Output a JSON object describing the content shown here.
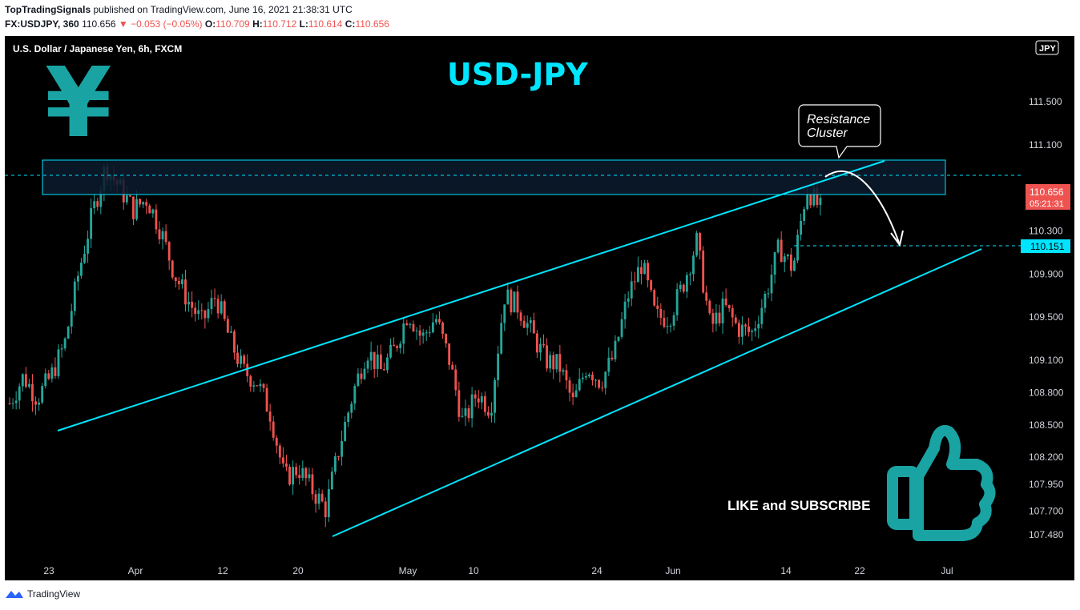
{
  "header": {
    "publisher": "TopTradingSignals",
    "published_text": "published on TradingView.com, June 16, 2021 21:38:31 UTC",
    "symbol": "FX:USDJPY, 360",
    "price": "110.656",
    "change_arrow": "▼",
    "change": "−0.053 (−0.05%)",
    "o_label": "O:",
    "o_value": "110.709",
    "h_label": "H:",
    "h_value": "110.712",
    "l_label": "L:",
    "l_value": "110.614",
    "c_label": "C:",
    "c_value": "110.656"
  },
  "chart": {
    "instrument": "U.S. Dollar / Japanese Yen, 6h, FXCM",
    "big_title": "USD-JPY",
    "currency_badge": "JPY",
    "currency_symbol": "¥",
    "resistance_label_line1": "Resistance",
    "resistance_label_line2": "Cluster",
    "cta": "LIKE and SUBSCRIBE",
    "thumb_icon": "thumbs-up-icon",
    "price_tag": "110.656",
    "countdown": "05:21:31",
    "level_tag": "110.151",
    "colors": {
      "up": "#26a69a",
      "down": "#ef5350",
      "accent": "#00e5ff",
      "teal": "#1aa3a3",
      "bg": "#000000"
    }
  },
  "footer": {
    "brand": "TradingView"
  },
  "chart_data": {
    "type": "candlestick",
    "title": "USD-JPY",
    "interval": "6h",
    "y_ticks": [
      111.5,
      111.1,
      110.7,
      110.3,
      109.9,
      109.5,
      109.1,
      108.8,
      108.5,
      108.2,
      107.95,
      107.7,
      107.48
    ],
    "y_tick_labels": [
      "111.500",
      "111.100",
      "110.700",
      "110.300",
      "109.900",
      "109.500",
      "109.100",
      "108.800",
      "108.500",
      "108.200",
      "107.950",
      "107.700",
      "107.480"
    ],
    "x_ticks": [
      "23",
      "Apr",
      "12",
      "20",
      "May",
      "10",
      "24",
      "Jun",
      "14",
      "22",
      "Jul"
    ],
    "resistance_zone": {
      "low": 110.6,
      "high": 110.92
    },
    "wedge_upper": {
      "from": {
        "date": "2021-03-23",
        "price": 108.42
      },
      "to": {
        "date": "2021-06-22",
        "price": 110.94
      }
    },
    "wedge_lower": {
      "from": {
        "date": "2021-04-21",
        "price": 107.5
      },
      "to": {
        "date": "2021-06-27",
        "price": 110.15
      }
    },
    "last_price": 110.656,
    "level": 110.151,
    "projection": {
      "from": 110.75,
      "to": 110.15
    },
    "close_path": [
      108.7,
      108.95,
      108.75,
      108.95,
      109.25,
      109.9,
      110.45,
      110.9,
      110.7,
      110.5,
      110.6,
      110.3,
      109.9,
      109.65,
      109.45,
      109.7,
      109.3,
      109.0,
      108.9,
      108.6,
      108.0,
      108.1,
      107.9,
      107.72,
      108.3,
      108.8,
      109.2,
      109.0,
      109.2,
      109.55,
      109.3,
      109.5,
      109.1,
      108.5,
      108.8,
      108.65,
      109.7,
      109.6,
      109.35,
      109.1,
      109.05,
      108.7,
      109.05,
      108.9,
      109.15,
      109.7,
      110.0,
      109.5,
      109.5,
      109.8,
      110.2,
      109.4,
      109.6,
      109.4,
      109.35,
      109.7,
      110.15,
      109.95,
      110.7,
      110.5
    ]
  }
}
